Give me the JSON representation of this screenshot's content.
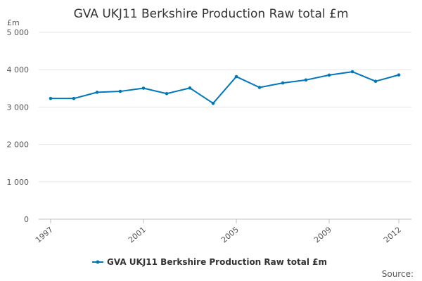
{
  "chart_data": {
    "type": "line",
    "title": "GVA UKJ11 Berkshire Production Raw total £m",
    "y_unit_label": "£m",
    "ylim": [
      0,
      5000
    ],
    "y_ticks": [
      0,
      1000,
      2000,
      3000,
      4000,
      5000
    ],
    "y_tick_labels": [
      "0",
      "1 000",
      "2 000",
      "3 000",
      "4 000",
      "5 000"
    ],
    "x_ticks": [
      1997,
      2001,
      2005,
      2009,
      2012
    ],
    "x_tick_labels": [
      "1997",
      "2001",
      "2005",
      "2009",
      "2012"
    ],
    "xlim": [
      1997,
      2012
    ],
    "grid": true,
    "legend_position": "bottom",
    "series": [
      {
        "name": "GVA UKJ11 Berkshire Production Raw total £m",
        "color": "#0077bb",
        "x": [
          1997,
          1998,
          1999,
          2000,
          2001,
          2002,
          2003,
          2004,
          2005,
          2006,
          2007,
          2008,
          2009,
          2010,
          2011,
          2012
        ],
        "values": [
          3230,
          3230,
          3395,
          3420,
          3505,
          3360,
          3510,
          3100,
          3815,
          3525,
          3645,
          3725,
          3855,
          3945,
          3690,
          3860
        ]
      }
    ],
    "source_label": "Source:"
  }
}
